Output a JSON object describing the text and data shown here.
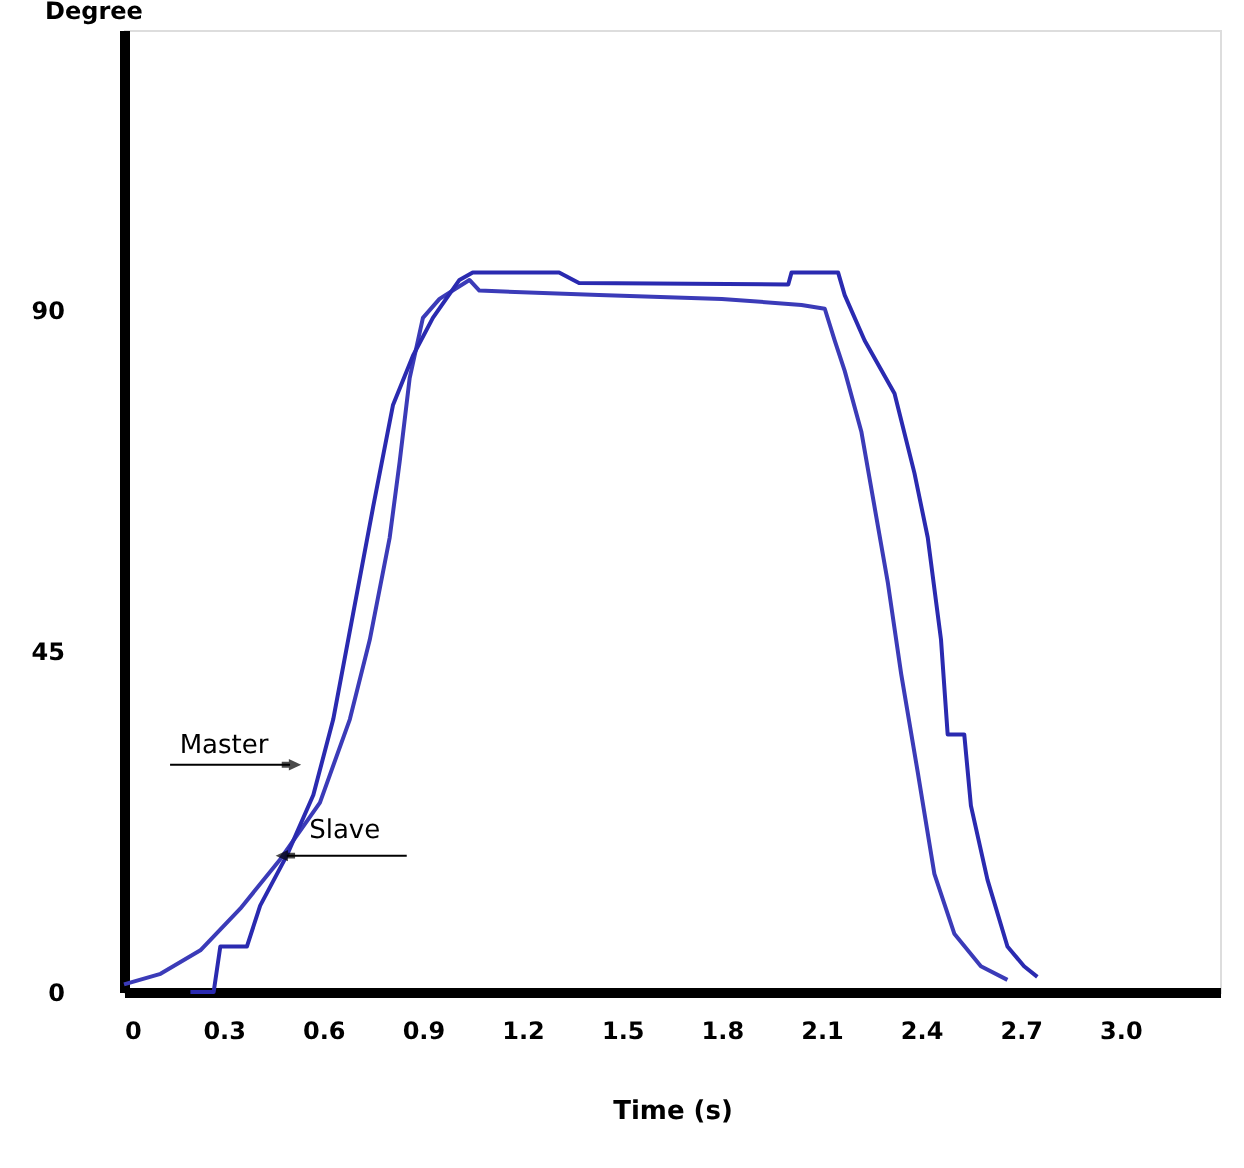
{
  "chart_data": {
    "type": "line",
    "xlabel": "Time (s)",
    "ylabel": "Degree",
    "xlim": [
      0,
      3.3
    ],
    "ylim": [
      0,
      127
    ],
    "xticks": [
      0,
      0.3,
      0.6,
      0.9,
      1.2,
      1.5,
      1.8,
      2.1,
      2.4,
      2.7,
      {
        "value": 3,
        "label": "3.0"
      }
    ],
    "yticks": [
      0,
      45,
      90
    ],
    "grid": false,
    "marker": "none",
    "line_style": "solid",
    "series": [
      {
        "color": "#3b3bb8",
        "x": [
          0,
          0.11,
          0.23,
          0.35,
          0.47,
          0.59,
          0.68,
          0.74,
          0.8,
          0.83,
          0.86,
          0.9,
          0.95,
          1.04,
          1.07,
          1.43,
          1.8,
          2.04,
          2.11,
          2.14,
          2.17,
          2.22,
          2.26,
          2.3,
          2.34,
          2.39,
          2.44,
          2.5,
          2.58,
          2.66
        ],
        "values": [
          1,
          2.4,
          5.5,
          11,
          17.5,
          25,
          36,
          46.5,
          60,
          70,
          81,
          89,
          91.5,
          94,
          92.6,
          92,
          91.5,
          90.7,
          90.2,
          86,
          82,
          74,
          64,
          54,
          42,
          29,
          15.6,
          7.7,
          3.4,
          1.6
        ]
      },
      {
        "color": "#2a2ab0",
        "x": [
          0.2,
          0.27,
          0.29,
          0.37,
          0.41,
          0.49,
          0.57,
          0.63,
          0.69,
          0.75,
          0.81,
          0.87,
          0.93,
          1.01,
          1.05,
          1.31,
          1.37,
          2.0,
          2.01,
          2.15,
          2.17,
          2.23,
          2.32,
          2.38,
          2.42,
          2.46,
          2.48,
          2.53,
          2.55,
          2.6,
          2.66,
          2.71,
          2.75
        ],
        "values": [
          0,
          0,
          6,
          6,
          11.4,
          18,
          26,
          36,
          50,
          64,
          77.5,
          84,
          89,
          94,
          95,
          95,
          93.6,
          93.4,
          95,
          95,
          92,
          86,
          79,
          68.5,
          60,
          46.5,
          34,
          34,
          24.6,
          14.8,
          6,
          3.4,
          2
        ]
      }
    ],
    "annotations": [
      {
        "text": "Master",
        "x": 0.5,
        "y": 30
      },
      {
        "text": "Slave",
        "x": 0.49,
        "y": 18
      }
    ]
  }
}
